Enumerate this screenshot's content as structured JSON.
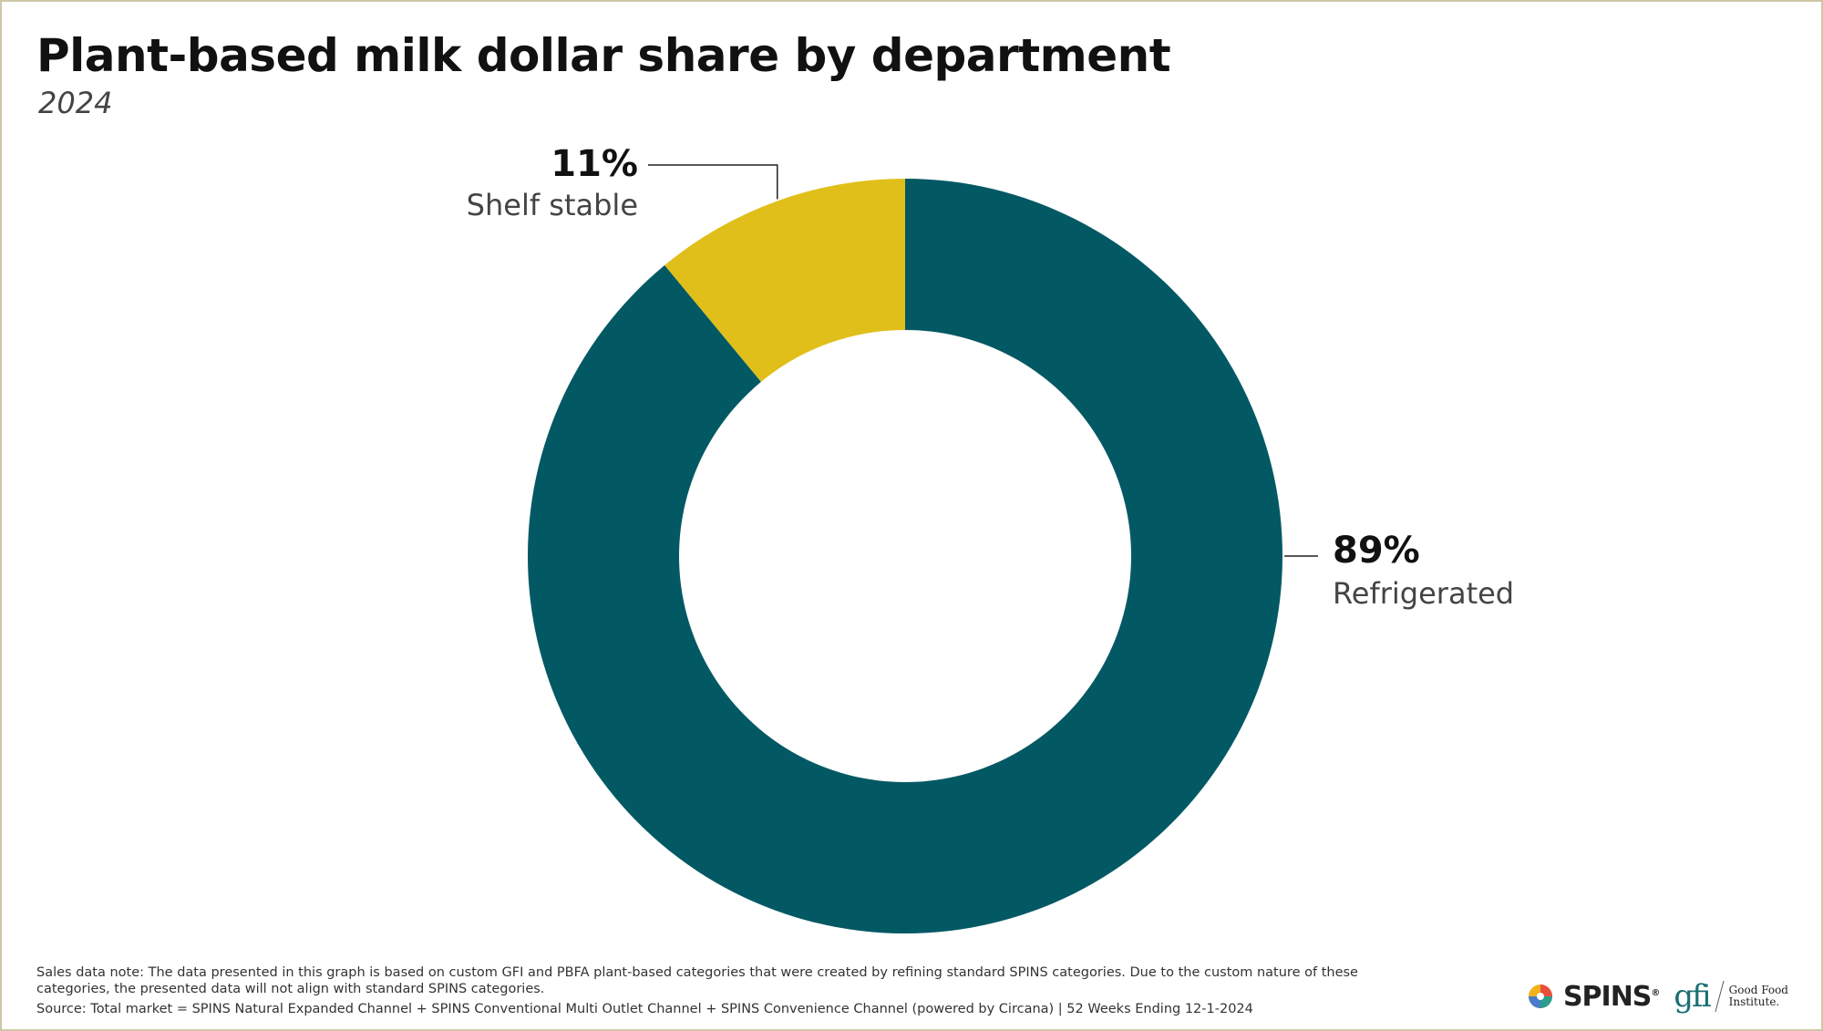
{
  "title": "Plant-based milk dollar share by department",
  "subtitle": "2024",
  "chart_data": {
    "type": "pie",
    "donut": true,
    "title": "Plant-based milk dollar share by department",
    "subtitle": "2024",
    "slices": [
      {
        "label": "Shelf stable",
        "value": 11,
        "value_label": "11%",
        "color": "#e0bf1a"
      },
      {
        "label": "Refrigerated",
        "value": 89,
        "value_label": "89%",
        "color": "#035963"
      }
    ]
  },
  "footnotes": {
    "sales_note": "Sales data note: The data presented in this graph is based on custom GFI and PBFA plant-based categories that were created by refining standard SPINS categories. Due to the custom nature of these categories, the presented data will not align with standard SPINS categories.",
    "source": "Source: Total market = SPINS Natural Expanded Channel + SPINS Conventional Multi Outlet Channel + SPINS Convenience Channel (powered by Circana) | 52 Weeks Ending 12-1-2024"
  },
  "logos": {
    "spins": "SPINS",
    "gfi": "gfi",
    "gfi_line1": "Good Food",
    "gfi_line2": "Institute."
  },
  "colors": {
    "refrigerated": "#035963",
    "shelf_stable": "#e0bf1a",
    "frame": "#cfc6a8"
  }
}
